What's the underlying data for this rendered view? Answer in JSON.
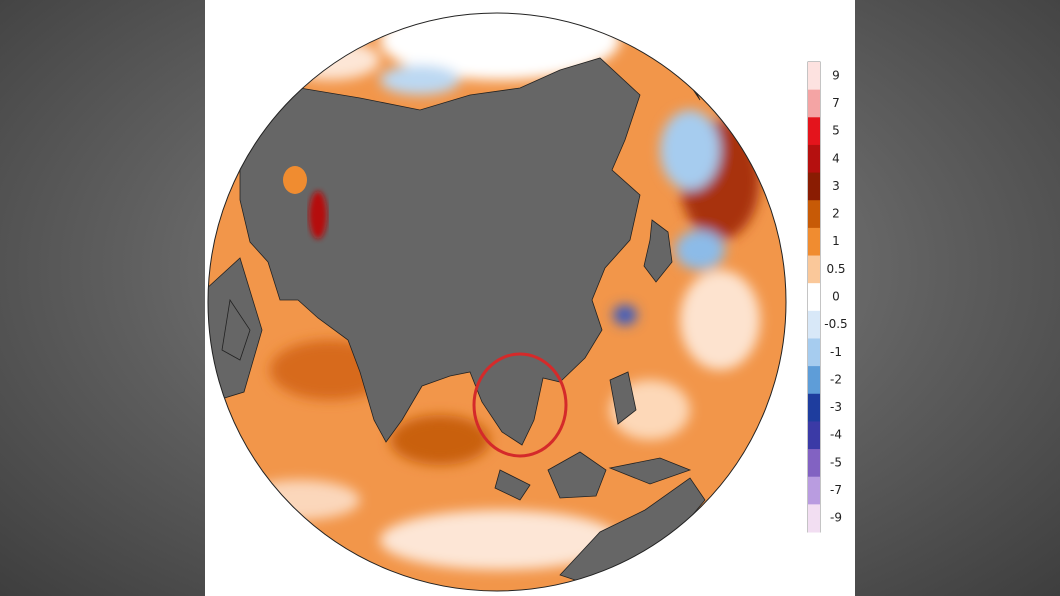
{
  "colorbar": {
    "ticks": [
      9,
      7,
      5,
      4,
      3,
      2,
      1,
      0.5,
      0,
      -0.5,
      -1,
      -2,
      -3,
      -4,
      -5,
      -7,
      -9
    ],
    "colors": [
      "#fde2e0",
      "#f4a4a4",
      "#e4141c",
      "#b5100f",
      "#8a1c02",
      "#c75a06",
      "#f08c30",
      "#fac89a",
      "#ffffff",
      "#d8e8f8",
      "#a6ccef",
      "#5e9dd8",
      "#1e3d9e",
      "#3b3aa6",
      "#8262c2",
      "#b99ce0",
      "#f2def2"
    ]
  }
}
